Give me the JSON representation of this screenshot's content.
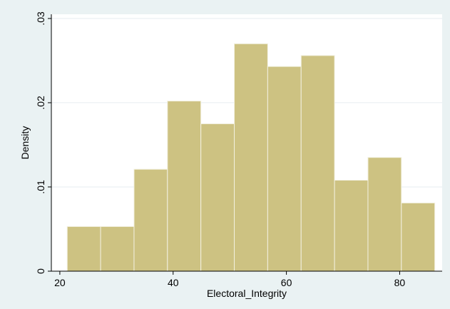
{
  "chart_data": {
    "type": "bar",
    "histogram": true,
    "xlabel": "Electoral_Integrity",
    "ylabel": "Density",
    "x_ticks": [
      20,
      40,
      60,
      80
    ],
    "y_ticks": [
      0,
      0.01,
      0.02,
      0.03
    ],
    "x_tick_labels": [
      "20",
      "40",
      "60",
      "80"
    ],
    "y_tick_labels": [
      "0",
      ".01",
      ".02",
      ".03"
    ],
    "xlim": [
      18.5,
      87.5
    ],
    "ylim": [
      0,
      0.0305
    ],
    "bins": [
      {
        "x0": 21.3,
        "x1": 27.2,
        "density": 0.0053
      },
      {
        "x0": 27.2,
        "x1": 33.1,
        "density": 0.0053
      },
      {
        "x0": 33.1,
        "x1": 39.0,
        "density": 0.0121
      },
      {
        "x0": 39.0,
        "x1": 44.9,
        "density": 0.0202
      },
      {
        "x0": 44.9,
        "x1": 50.8,
        "density": 0.0175
      },
      {
        "x0": 50.8,
        "x1": 56.7,
        "density": 0.027
      },
      {
        "x0": 56.7,
        "x1": 62.6,
        "density": 0.0243
      },
      {
        "x0": 62.6,
        "x1": 68.5,
        "density": 0.0256
      },
      {
        "x0": 68.5,
        "x1": 74.4,
        "density": 0.0108
      },
      {
        "x0": 74.4,
        "x1": 80.3,
        "density": 0.0135
      },
      {
        "x0": 80.3,
        "x1": 86.2,
        "density": 0.0081
      }
    ],
    "bar_color": "#cdc282",
    "background_color": "#eaf2f3",
    "grid": true,
    "legend": "none"
  }
}
